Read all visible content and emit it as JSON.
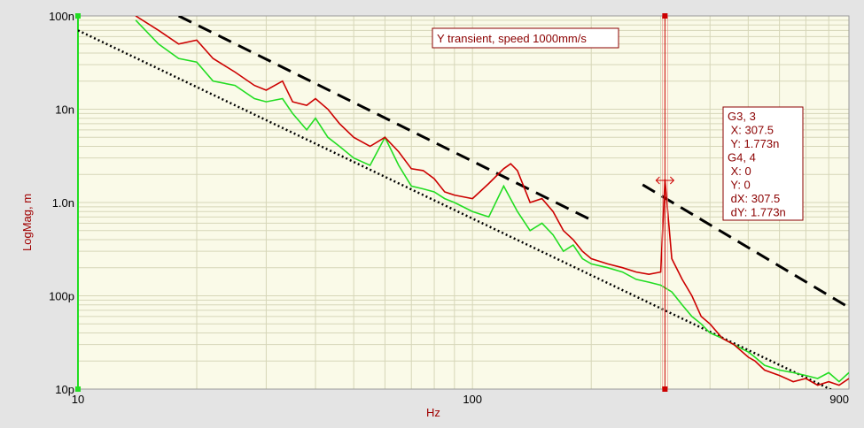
{
  "chart_data": {
    "type": "line",
    "title": "Y transient, speed 1000mm/s",
    "xlabel": "Hz",
    "ylabel": "LogMag, m",
    "xscale": "log",
    "yscale": "log",
    "xlim": [
      10,
      900
    ],
    "ylim": [
      1e-11,
      1e-07
    ],
    "grid": true,
    "x_tick_labels": [
      {
        "value": 10,
        "label": "10"
      },
      {
        "value": 100,
        "label": "100"
      },
      {
        "value": 900,
        "label": "900"
      }
    ],
    "y_tick_labels": [
      {
        "value": 1e-07,
        "label": "100n"
      },
      {
        "value": 1e-08,
        "label": "10n"
      },
      {
        "value": 1e-09,
        "label": "1.0n"
      },
      {
        "value": 1e-10,
        "label": "100p"
      },
      {
        "value": 1e-11,
        "label": "10p"
      }
    ],
    "colors": {
      "red": "#cc0000",
      "green": "#22dd22",
      "background": "#fafae8",
      "grid": "#d6d6b8"
    },
    "series": [
      {
        "color": "#cc0000",
        "x": [
          14,
          16,
          18,
          20,
          22,
          25,
          28,
          30,
          33,
          35,
          38,
          40,
          43,
          46,
          50,
          55,
          60,
          65,
          70,
          75,
          80,
          85,
          90,
          100,
          110,
          120,
          125,
          130,
          140,
          150,
          160,
          170,
          180,
          190,
          200,
          220,
          240,
          260,
          280,
          300,
          307.5,
          320,
          340,
          360,
          380,
          400,
          430,
          460,
          500,
          520,
          550,
          600,
          650,
          700,
          750,
          800,
          850,
          900
        ],
        "y": [
          1e-07,
          7e-08,
          5e-08,
          5.5e-08,
          3.5e-08,
          2.5e-08,
          1.8e-08,
          1.6e-08,
          2e-08,
          1.2e-08,
          1.1e-08,
          1.3e-08,
          1e-08,
          7e-09,
          5e-09,
          4e-09,
          5e-09,
          3.5e-09,
          2.3e-09,
          2.2e-09,
          1.8e-09,
          1.3e-09,
          1.2e-09,
          1.1e-09,
          1.6e-09,
          2.3e-09,
          2.6e-09,
          2.2e-09,
          1e-09,
          1.1e-09,
          8e-10,
          5e-10,
          4e-10,
          3e-10,
          2.5e-10,
          2.2e-10,
          2e-10,
          1.8e-10,
          1.7e-10,
          1.8e-10,
          1.773e-09,
          2.5e-10,
          1.5e-10,
          1e-10,
          6e-11,
          5e-11,
          3.5e-11,
          3e-11,
          2.2e-11,
          2e-11,
          1.6e-11,
          1.4e-11,
          1.2e-11,
          1.3e-11,
          1.1e-11,
          1.2e-11,
          1.1e-11,
          1.3e-11
        ]
      },
      {
        "color": "#22dd22",
        "x": [
          14,
          16,
          18,
          20,
          22,
          25,
          28,
          30,
          33,
          35,
          38,
          40,
          43,
          46,
          50,
          55,
          60,
          65,
          70,
          75,
          80,
          85,
          90,
          100,
          110,
          120,
          130,
          140,
          150,
          160,
          170,
          180,
          190,
          200,
          220,
          240,
          260,
          280,
          300,
          320,
          340,
          360,
          380,
          400,
          430,
          460,
          500,
          520,
          550,
          600,
          650,
          700,
          750,
          800,
          850,
          900
        ],
        "y": [
          9e-08,
          5e-08,
          3.5e-08,
          3.2e-08,
          2e-08,
          1.8e-08,
          1.3e-08,
          1.2e-08,
          1.3e-08,
          9e-09,
          6e-09,
          8e-09,
          5e-09,
          4e-09,
          3e-09,
          2.5e-09,
          5e-09,
          2.5e-09,
          1.5e-09,
          1.4e-09,
          1.3e-09,
          1.1e-09,
          1e-09,
          8e-10,
          7e-10,
          1.5e-09,
          8e-10,
          5e-10,
          6e-10,
          4.5e-10,
          3e-10,
          3.5e-10,
          2.5e-10,
          2.2e-10,
          2e-10,
          1.8e-10,
          1.5e-10,
          1.4e-10,
          1.3e-10,
          1.1e-10,
          8e-11,
          6e-11,
          5e-11,
          4e-11,
          3.5e-11,
          3e-11,
          2.5e-11,
          2.2e-11,
          1.8e-11,
          1.6e-11,
          1.5e-11,
          1.4e-11,
          1.3e-11,
          1.5e-11,
          1.2e-11,
          1.5e-11
        ]
      }
    ],
    "reference_lines": [
      {
        "style": "dashed",
        "x": [
          18,
          200
        ],
        "y": [
          1e-07,
          6.5e-10
        ]
      },
      {
        "style": "dashed",
        "x": [
          270,
          900
        ],
        "y": [
          1.55e-09,
          7.5e-11
        ]
      },
      {
        "style": "dotted",
        "x": [
          10,
          900
        ],
        "y": [
          7e-08,
          8e-12
        ]
      }
    ],
    "cursor": {
      "x": 307.5,
      "y": "1.773n",
      "readout": [
        {
          "text": "G3, 3"
        },
        {
          "text": " X: 307.5"
        },
        {
          "text": " Y: 1.773n"
        },
        {
          "text": "G4, 4"
        },
        {
          "text": " X: 0"
        },
        {
          "text": " Y: 0"
        },
        {
          "text": " dX: 307.5"
        },
        {
          "text": " dY: 1.773n"
        }
      ]
    }
  }
}
